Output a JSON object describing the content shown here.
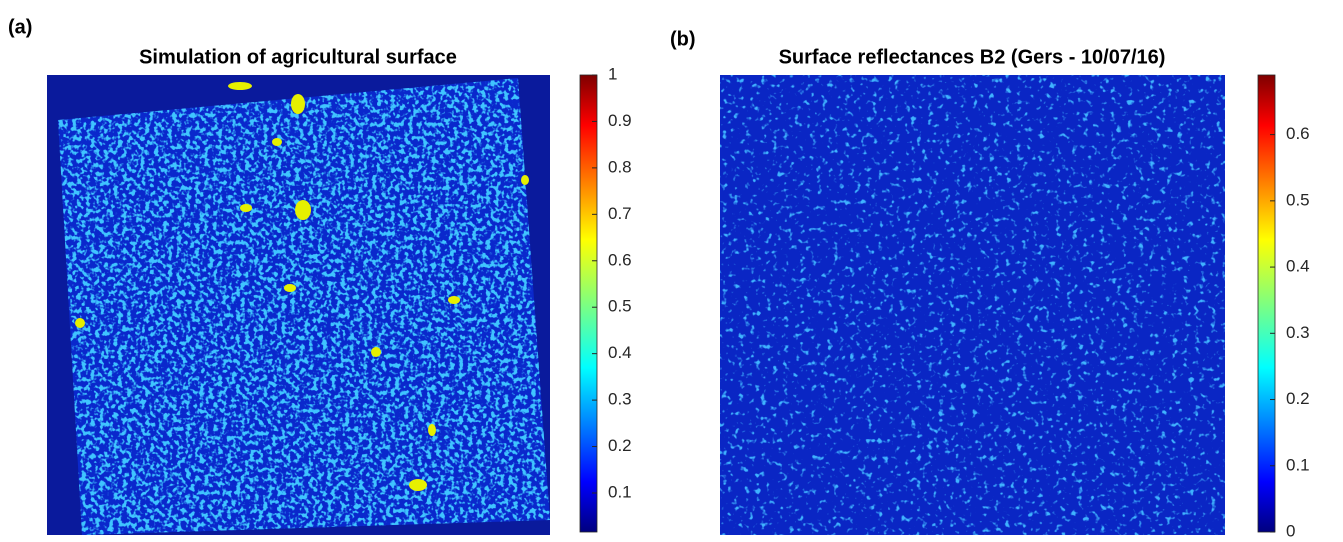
{
  "chart_data": [
    {
      "type": "heatmap",
      "panel_label": "(a)",
      "title": "Simulation of agricultural surface",
      "colormap": "jet",
      "ylim": [
        0.016,
        1
      ],
      "yticks": [
        0.1,
        0.2,
        0.3,
        0.4,
        0.5,
        0.6,
        0.7,
        0.8,
        0.9,
        1
      ]
    },
    {
      "type": "heatmap",
      "panel_label": "(b)",
      "title": "Surface reflectances B2 (Gers - 10/07/16)",
      "colormap": "jet",
      "ylim": [
        0,
        0.69
      ],
      "yticks": [
        0,
        0.1,
        0.2,
        0.3,
        0.4,
        0.5,
        0.6
      ]
    }
  ]
}
